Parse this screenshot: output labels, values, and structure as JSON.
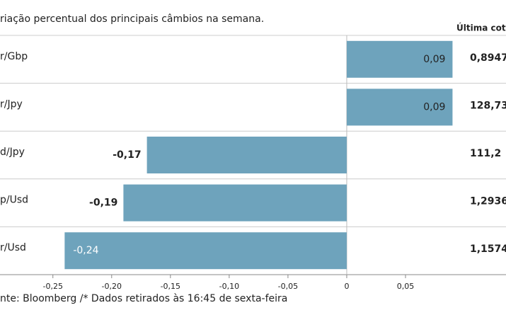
{
  "chart_data": {
    "type": "hbar",
    "title": "riação percentual dos principais câmbios na semana.",
    "categories": [
      "r/Gbp",
      "r/Jpy",
      "d/Jpy",
      "p/Usd",
      "r/Usd"
    ],
    "values": [
      0.09,
      0.09,
      -0.17,
      -0.19,
      -0.24
    ],
    "value_labels": [
      "0,09",
      "0,09",
      "-0,17",
      "-0,19",
      "-0,24"
    ],
    "color": "#6ea3bc",
    "xlim": [
      -0.295,
      0.1355
    ],
    "xticks": [
      {
        "value": -0.25,
        "label": "-0,25"
      },
      {
        "value": -0.2,
        "label": "-0,20"
      },
      {
        "value": -0.15,
        "label": "-0,15"
      },
      {
        "value": -0.1,
        "label": "-0,10"
      },
      {
        "value": -0.05,
        "label": "-0,05"
      },
      {
        "value": 0,
        "label": "0"
      },
      {
        "value": 0.05,
        "label": "0,05"
      }
    ],
    "column_header": "Última cotaç",
    "column_values": [
      "0,8947",
      "128,73",
      "111,2",
      "1,2936",
      "1,1574"
    ],
    "source": "nte: Bloomberg  /* Dados retirados às 16:45 de sexta-feira"
  }
}
